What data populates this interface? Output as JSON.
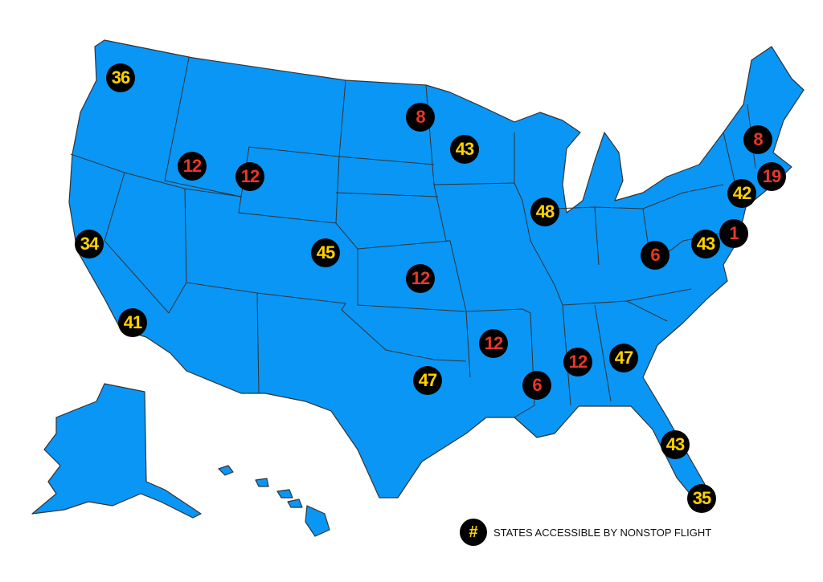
{
  "colors": {
    "land": "#0a96f5",
    "border": "#333333",
    "high": "#ffd200",
    "low": "#e8372b",
    "marker_bg": "#000000"
  },
  "legend": {
    "symbol": "#",
    "label": "STATES ACCESSIBLE BY NONSTOP FLIGHT"
  },
  "markers": [
    {
      "region": "Washington",
      "value": "36",
      "level": "high"
    },
    {
      "region": "Idaho",
      "value": "12",
      "level": "low"
    },
    {
      "region": "Wyoming-Idaho",
      "value": "12",
      "level": "low"
    },
    {
      "region": "Northern California",
      "value": "34",
      "level": "high"
    },
    {
      "region": "Southern California",
      "value": "41",
      "level": "high"
    },
    {
      "region": "Colorado",
      "value": "45",
      "level": "high"
    },
    {
      "region": "Kansas",
      "value": "12",
      "level": "low"
    },
    {
      "region": "North Dakota",
      "value": "8",
      "level": "low"
    },
    {
      "region": "Minnesota",
      "value": "43",
      "level": "high"
    },
    {
      "region": "Illinois",
      "value": "48",
      "level": "high"
    },
    {
      "region": "Texas",
      "value": "47",
      "level": "high"
    },
    {
      "region": "Arkansas",
      "value": "12",
      "level": "low"
    },
    {
      "region": "Mississippi",
      "value": "6",
      "level": "low"
    },
    {
      "region": "Alabama",
      "value": "12",
      "level": "low"
    },
    {
      "region": "Georgia",
      "value": "47",
      "level": "high"
    },
    {
      "region": "Central Florida",
      "value": "43",
      "level": "high"
    },
    {
      "region": "South Florida",
      "value": "35",
      "level": "high"
    },
    {
      "region": "West Virginia",
      "value": "6",
      "level": "low"
    },
    {
      "region": "Virginia-Maryland",
      "value": "43",
      "level": "high"
    },
    {
      "region": "Delaware-New Jersey",
      "value": "1",
      "level": "low"
    },
    {
      "region": "New York-Connecticut",
      "value": "42",
      "level": "high"
    },
    {
      "region": "Massachusetts",
      "value": "19",
      "level": "low"
    },
    {
      "region": "New Hampshire",
      "value": "8",
      "level": "low"
    }
  ]
}
